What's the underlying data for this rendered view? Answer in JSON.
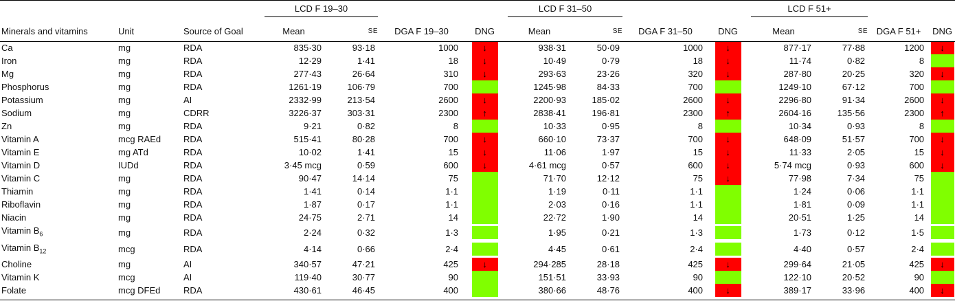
{
  "header": {
    "groups": [
      "LCD F 19–30",
      "LCD F 31–50",
      "LCD F 51+"
    ],
    "col_mineral": "Minerals and vitamins",
    "col_unit": "Unit",
    "col_source": "Source of Goal",
    "col_mean": "Mean",
    "col_se": "SE",
    "col_dga": [
      "DGA F 19–30",
      "DGA F 31–50",
      "DGA F 51+"
    ],
    "col_dng": "DNG"
  },
  "colors": {
    "red": "#ff0000",
    "green": "#80ff00"
  },
  "rows": [
    {
      "name": "Ca",
      "unit": "mg",
      "source": "RDA",
      "m1": "835·30",
      "s1": "93·18",
      "d1": "1000",
      "g1": "red",
      "a1": "↓",
      "m2": "938·31",
      "s2": "50·09",
      "d2": "1000",
      "g2": "red",
      "a2": "↓",
      "m3": "877·17",
      "s3": "77·88",
      "d3": "1200",
      "g3": "red",
      "a3": "↓"
    },
    {
      "name": "Iron",
      "unit": "mg",
      "source": "RDA",
      "m1": "12·29",
      "s1": "1·41",
      "d1": "18",
      "g1": "red",
      "a1": "↓",
      "m2": "10·49",
      "s2": "0·79",
      "d2": "18",
      "g2": "red",
      "a2": "↓",
      "m3": "11·74",
      "s3": "0·82",
      "d3": "8",
      "g3": "green",
      "a3": ""
    },
    {
      "name": "Mg",
      "unit": "mg",
      "source": "RDA",
      "m1": "277·43",
      "s1": "26·64",
      "d1": "310",
      "g1": "red",
      "a1": "↓",
      "m2": "293·63",
      "s2": "23·26",
      "d2": "320",
      "g2": "red",
      "a2": "↓",
      "m3": "287·80",
      "s3": "20·25",
      "d3": "320",
      "g3": "red",
      "a3": "↓"
    },
    {
      "name": "Phosphorus",
      "unit": "mg",
      "source": "RDA",
      "m1": "1261·19",
      "s1": "106·79",
      "d1": "700",
      "g1": "green",
      "a1": "",
      "m2": "1245·98",
      "s2": "84·33",
      "d2": "700",
      "g2": "green",
      "a2": "",
      "m3": "1249·10",
      "s3": "67·12",
      "d3": "700",
      "g3": "green",
      "a3": ""
    },
    {
      "name": "Potassium",
      "unit": "mg",
      "source": "AI",
      "m1": "2332·99",
      "s1": "213·54",
      "d1": "2600",
      "g1": "red",
      "a1": "↓",
      "m2": "2200·93",
      "s2": "185·02",
      "d2": "2600",
      "g2": "red",
      "a2": "↓",
      "m3": "2296·80",
      "s3": "91·34",
      "d3": "2600",
      "g3": "red",
      "a3": "↓"
    },
    {
      "name": "Sodium",
      "unit": "mg",
      "source": "CDRR",
      "m1": "3226·37",
      "s1": "303·31",
      "d1": "2300",
      "g1": "red",
      "a1": "↑",
      "m2": "2838·41",
      "s2": "196·81",
      "d2": "2300",
      "g2": "red",
      "a2": "↑",
      "m3": "2604·16",
      "s3": "135·56",
      "d3": "2300",
      "g3": "red",
      "a3": "↑"
    },
    {
      "name": "Zn",
      "unit": "mg",
      "source": "RDA",
      "m1": "9·21",
      "s1": "0·82",
      "d1": "8",
      "g1": "green",
      "a1": "",
      "m2": "10·33",
      "s2": "0·95",
      "d2": "8",
      "g2": "green",
      "a2": "",
      "m3": "10·34",
      "s3": "0·93",
      "d3": "8",
      "g3": "green",
      "a3": ""
    },
    {
      "name": "Vitamin A",
      "unit": "mcg RAEd",
      "source": "RDA",
      "m1": "515·41",
      "s1": "80·28",
      "d1": "700",
      "g1": "red",
      "a1": "↓",
      "m2": "660·10",
      "s2": "73·37",
      "d2": "700",
      "g2": "red",
      "a2": "↓",
      "m3": "648·09",
      "s3": "51·57",
      "d3": "700",
      "g3": "red",
      "a3": "↓"
    },
    {
      "name": "Vitamin E",
      "unit": "mg ATd",
      "source": "RDA",
      "m1": "10·02",
      "s1": "1·41",
      "d1": "15",
      "g1": "red",
      "a1": "↓",
      "m2": "11·06",
      "s2": "1·97",
      "d2": "15",
      "g2": "red",
      "a2": "↓",
      "m3": "11·33",
      "s3": "2·05",
      "d3": "15",
      "g3": "red",
      "a3": "↓"
    },
    {
      "name": "Vitamin D",
      "unit": "IUDd",
      "source": "RDA",
      "m1": "3·45 mcg",
      "s1": "0·59",
      "d1": "600",
      "g1": "red",
      "a1": "↓",
      "m2": "4·61 mcg",
      "s2": "0·57",
      "d2": "600",
      "g2": "red",
      "a2": "↓",
      "m3": "5·74 mcg",
      "s3": "0·93",
      "d3": "600",
      "g3": "red",
      "a3": "↓"
    },
    {
      "name": "Vitamin C",
      "unit": "mg",
      "source": "RDA",
      "m1": "90·47",
      "s1": "14·14",
      "d1": "75",
      "g1": "green",
      "a1": "",
      "m2": "71·70",
      "s2": "12·12",
      "d2": "75",
      "g2": "red",
      "a2": "↓",
      "m3": "77·98",
      "s3": "7·34",
      "d3": "75",
      "g3": "green",
      "a3": ""
    },
    {
      "name": "Thiamin",
      "unit": "mg",
      "source": "RDA",
      "m1": "1·41",
      "s1": "0·14",
      "d1": "1·1",
      "g1": "green",
      "a1": "",
      "m2": "1·19",
      "s2": "0·11",
      "d2": "1·1",
      "g2": "green",
      "a2": "",
      "m3": "1·24",
      "s3": "0·06",
      "d3": "1·1",
      "g3": "green",
      "a3": ""
    },
    {
      "name": "Riboflavin",
      "unit": "mg",
      "source": "RDA",
      "m1": "1·87",
      "s1": "0·17",
      "d1": "1·1",
      "g1": "green",
      "a1": "",
      "m2": "2·03",
      "s2": "0·16",
      "d2": "1·1",
      "g2": "green",
      "a2": "",
      "m3": "1·81",
      "s3": "0·09",
      "d3": "1·1",
      "g3": "green",
      "a3": ""
    },
    {
      "name": "Niacin",
      "unit": "mg",
      "source": "RDA",
      "m1": "24·75",
      "s1": "2·71",
      "d1": "14",
      "g1": "green",
      "a1": "",
      "m2": "22·72",
      "s2": "1·90",
      "d2": "14",
      "g2": "green",
      "a2": "",
      "m3": "20·51",
      "s3": "1·25",
      "d3": "14",
      "g3": "green",
      "a3": ""
    },
    {
      "name": "Vitamin B",
      "sub": "6",
      "unit": "mg",
      "source": "RDA",
      "m1": "2·24",
      "s1": "0·32",
      "d1": "1·3",
      "g1": "green",
      "a1": "",
      "m2": "1·95",
      "s2": "0·21",
      "d2": "1·3",
      "g2": "green",
      "a2": "",
      "m3": "1·73",
      "s3": "0·12",
      "d3": "1·5",
      "g3": "green",
      "a3": ""
    },
    {
      "name": "Vitamin B",
      "sub": "12",
      "unit": "mcg",
      "source": "RDA",
      "m1": "4·14",
      "s1": "0·66",
      "d1": "2·4",
      "g1": "green",
      "a1": "",
      "m2": "4·45",
      "s2": "0·61",
      "d2": "2·4",
      "g2": "green",
      "a2": "",
      "m3": "4·40",
      "s3": "0·57",
      "d3": "2·4",
      "g3": "green",
      "a3": ""
    },
    {
      "name": "Choline",
      "unit": "mg",
      "source": "AI",
      "m1": "340·57",
      "s1": "47·21",
      "d1": "425",
      "g1": "red",
      "a1": "↓",
      "m2": "294·285",
      "s2": "28·18",
      "d2": "425",
      "g2": "red",
      "a2": "↓",
      "m3": "299·64",
      "s3": "21·05",
      "d3": "425",
      "g3": "red",
      "a3": "↓"
    },
    {
      "name": "Vitamin K",
      "unit": "mcg",
      "source": "AI",
      "m1": "119·40",
      "s1": "30·77",
      "d1": "90",
      "g1": "green",
      "a1": "",
      "m2": "151·51",
      "s2": "33·93",
      "d2": "90",
      "g2": "green",
      "a2": "",
      "m3": "122·10",
      "s3": "20·52",
      "d3": "90",
      "g3": "green",
      "a3": ""
    },
    {
      "name": "Folate",
      "unit": "mcg DFEd",
      "source": "RDA",
      "m1": "430·61",
      "s1": "46·45",
      "d1": "400",
      "g1": "green",
      "a1": "",
      "m2": "380·66",
      "s2": "48·76",
      "d2": "400",
      "g2": "red",
      "a2": "↓",
      "m3": "389·17",
      "s3": "33·96",
      "d3": "400",
      "g3": "red",
      "a3": "↓"
    }
  ]
}
